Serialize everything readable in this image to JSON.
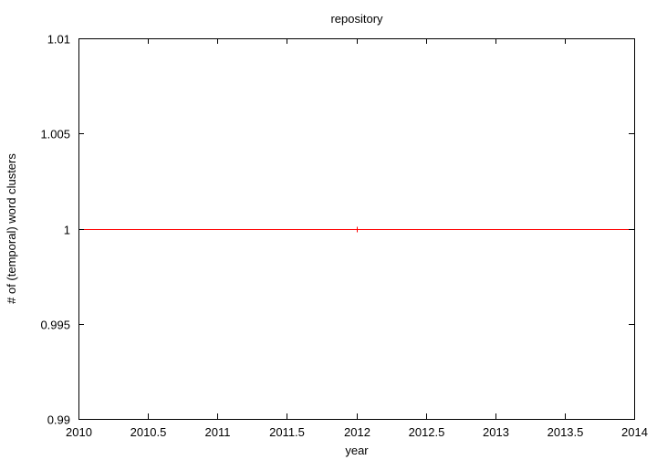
{
  "chart_data": {
    "type": "line",
    "title": "repository",
    "xlabel": "year",
    "ylabel": "# of (temporal) word clusters",
    "xlim": [
      2010,
      2014
    ],
    "ylim": [
      0.99,
      1.01
    ],
    "x_ticks": [
      "2010",
      "2010.5",
      "2011",
      "2011.5",
      "2012",
      "2012.5",
      "2013",
      "2013.5",
      "2014"
    ],
    "y_ticks": [
      "0.99",
      "0.995",
      "1",
      "1.005",
      "1.01"
    ],
    "grid": false,
    "series": [
      {
        "x": [
          2012
        ],
        "y": [
          1
        ],
        "color": "#ff0000",
        "marker": "plus"
      }
    ],
    "reference_line": {
      "y": 1,
      "color": "#ff0000"
    }
  }
}
